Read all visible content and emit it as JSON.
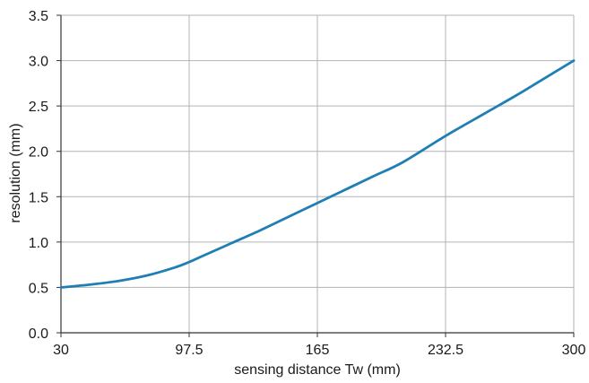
{
  "chart_data": {
    "type": "line",
    "xlabel": "sensing distance Tw (mm)",
    "ylabel": "resolution (mm)",
    "xlim": [
      30,
      300
    ],
    "ylim": [
      0,
      3.5
    ],
    "x_ticks": [
      30,
      97.5,
      165,
      232.5,
      300
    ],
    "x_tick_labels": [
      "30",
      "97.5",
      "165",
      "232.5",
      "300"
    ],
    "y_ticks": [
      0,
      0.5,
      1,
      1.5,
      2,
      2.5,
      3,
      3.5
    ],
    "y_tick_labels": [
      "0.0",
      "0.5",
      "1.0",
      "1.5",
      "2.0",
      "2.5",
      "3.0",
      "3.5"
    ],
    "grid": true,
    "series": [
      {
        "color": "#1f7fb4",
        "x": [
          30,
          45,
          60,
          75,
          90,
          97.5,
          105,
          120,
          135,
          150,
          165,
          180,
          195,
          210,
          232.5,
          255,
          270,
          285,
          300
        ],
        "y": [
          0.5,
          0.53,
          0.57,
          0.63,
          0.72,
          0.78,
          0.85,
          0.99,
          1.13,
          1.28,
          1.43,
          1.58,
          1.73,
          1.88,
          2.17,
          2.44,
          2.62,
          2.81,
          3.0
        ]
      }
    ]
  }
}
